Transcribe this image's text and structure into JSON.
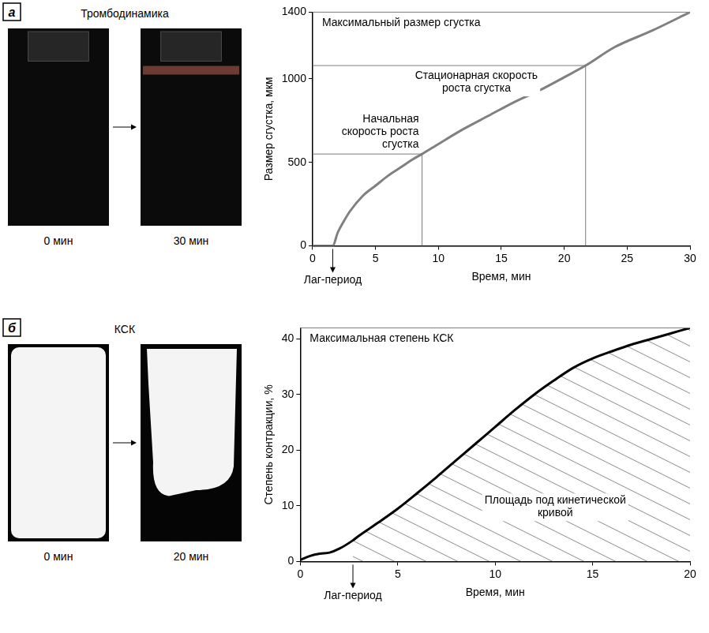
{
  "panels": [
    {
      "letter": "а",
      "title": "Тромбодинамика",
      "photos": [
        "0 мин",
        "30 мин"
      ]
    },
    {
      "letter": "б",
      "title": "КСК",
      "photos": [
        "0 мин",
        "20 мин"
      ]
    }
  ],
  "chart_data": [
    {
      "type": "line",
      "x_label": "Время, мин",
      "y_label": "Размер сгустка, мкм",
      "x": [
        0,
        1.6,
        2,
        2.5,
        3,
        4,
        5,
        6,
        7,
        8,
        8.7,
        10,
        12,
        14,
        16,
        18,
        20,
        21.7,
        24,
        27,
        30
      ],
      "values": [
        0,
        0,
        80,
        150,
        210,
        300,
        360,
        420,
        470,
        520,
        550,
        610,
        700,
        780,
        860,
        930,
        1010,
        1080,
        1190,
        1290,
        1400
      ],
      "color": "#808080",
      "xlim": [
        0,
        30
      ],
      "xticks": [
        0,
        5,
        10,
        15,
        20,
        25,
        30
      ],
      "ylim": [
        0,
        1400
      ],
      "yticks": [
        0,
        500,
        1000,
        1400
      ],
      "grid": false,
      "levels": [
        {
          "text": "Максимальный размер сгустка",
          "x": 30,
          "y": 1400
        },
        {
          "text": "Стационарная скорость роста сгустка",
          "x": 21.7,
          "y": 1080
        },
        {
          "text": "Начальная скорость роста сгустка",
          "x": 8.7,
          "y": 550
        }
      ],
      "lag": {
        "text": "Лаг-период",
        "x": 1.6
      }
    },
    {
      "type": "line",
      "x_label": "Время, мин",
      "y_label": "Степень контракции, %",
      "x": [
        0,
        0.5,
        1,
        1.5,
        2,
        2.7,
        3,
        4,
        5,
        6,
        7,
        8,
        9,
        10,
        11,
        12,
        13,
        14,
        15,
        16,
        17,
        18,
        19,
        20
      ],
      "values": [
        0.3,
        1,
        1.4,
        1.6,
        2.3,
        3.8,
        4.6,
        7,
        9.5,
        12.3,
        15.2,
        18.2,
        21.2,
        24.2,
        27.2,
        30,
        32.5,
        34.8,
        36.5,
        37.8,
        39,
        40,
        41,
        42
      ],
      "color": "#000000",
      "xlim": [
        0,
        20
      ],
      "xticks": [
        0,
        5,
        10,
        15,
        20
      ],
      "ylim": [
        0,
        42
      ],
      "yticks": [
        0,
        10,
        20,
        30,
        40
      ],
      "grid": false,
      "levels": [
        {
          "text": "Максимальная степень КСК",
          "x": 20,
          "y": 42
        }
      ],
      "lag": {
        "text": "Лаг-период",
        "x": 2.7
      },
      "area_label": "Площадь под кинетической кривой"
    }
  ]
}
